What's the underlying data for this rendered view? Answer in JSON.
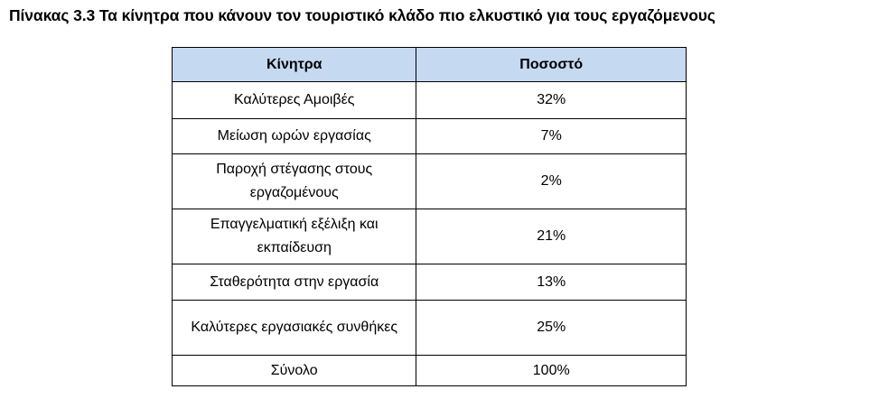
{
  "document": {
    "caption": "Πίνακας 3.3 Τα κίνητρα που κάνουν τον τουριστικό κλάδο πιο ελκυστικό για τους εργαζόμενους"
  },
  "table": {
    "columns": [
      "Κίνητρα",
      "Ποσοστό"
    ],
    "rows": [
      {
        "motive": "Καλύτερες Αμοιβές",
        "percent": "32%"
      },
      {
        "motive": "Μείωση ωρών εργασίας",
        "percent": "7%"
      },
      {
        "motive": "Παροχή στέγασης στους εργαζομένους",
        "percent": "2%"
      },
      {
        "motive": "Επαγγελματική εξέλιξη και εκπαίδευση",
        "percent": "21%"
      },
      {
        "motive": "Σταθερότητα στην εργασία",
        "percent": "13%"
      },
      {
        "motive": "Καλύτερες εργασιακές συνθήκες",
        "percent": "25%"
      },
      {
        "motive": "Σύνολο",
        "percent": "100%"
      }
    ],
    "header_color": "#c5d9f1"
  }
}
